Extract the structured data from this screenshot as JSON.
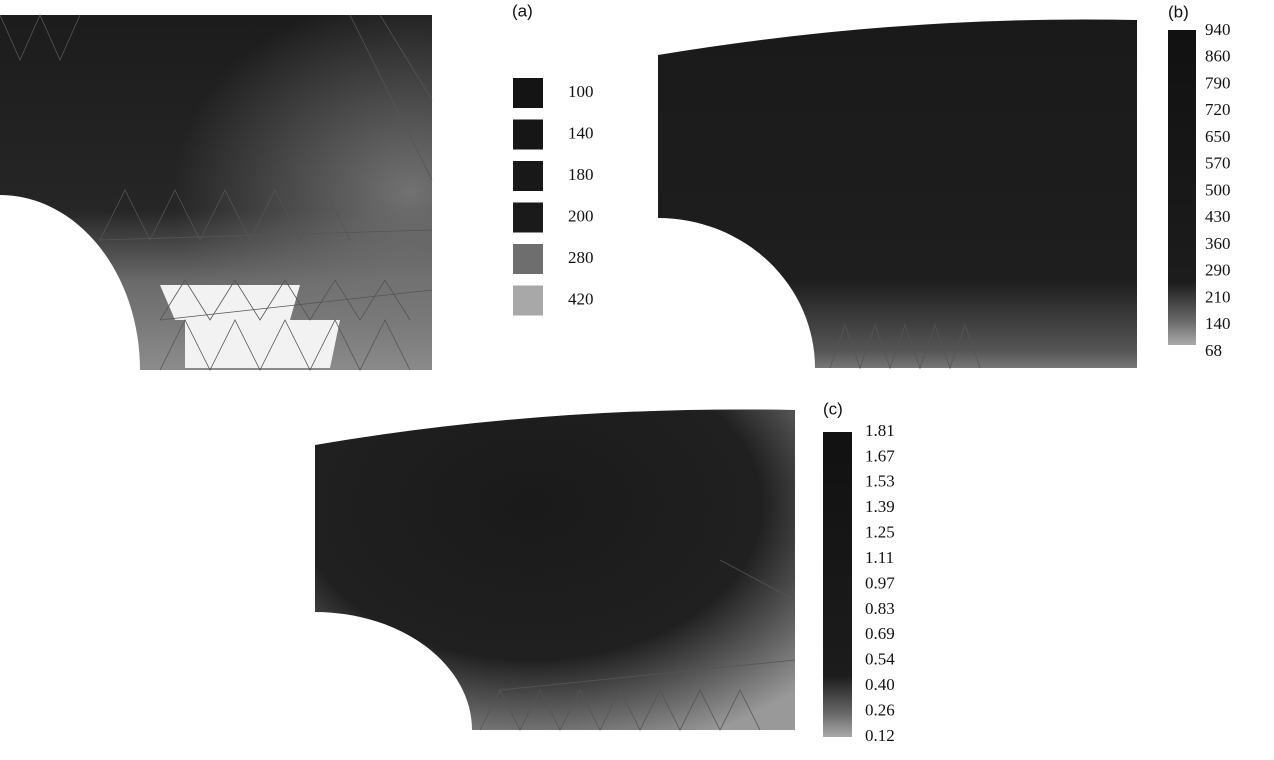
{
  "panels": [
    {
      "label": "(a)",
      "legend": [
        "100",
        "140",
        "180",
        "200",
        "280",
        "420"
      ]
    },
    {
      "label": "(b)",
      "legend": [
        "940",
        "860",
        "790",
        "720",
        "650",
        "570",
        "500",
        "430",
        "360",
        "290",
        "210",
        "140",
        "68"
      ]
    },
    {
      "label": "(c)",
      "legend": [
        "1.81",
        "1.67",
        "1.53",
        "1.39",
        "1.25",
        "1.11",
        "0.97",
        "0.83",
        "0.69",
        "0.54",
        "0.40",
        "0.26",
        "0.12"
      ]
    }
  ]
}
